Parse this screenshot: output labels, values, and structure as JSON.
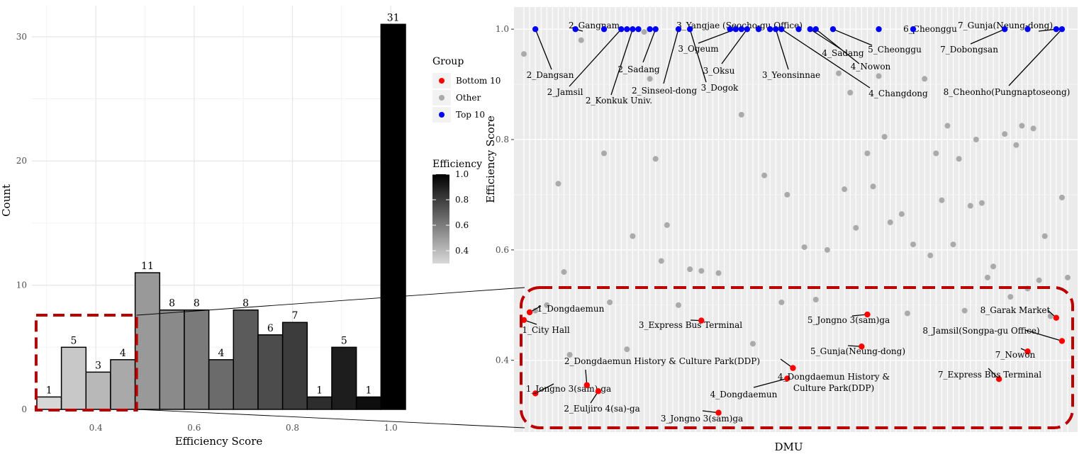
{
  "chart_data": [
    {
      "type": "bar",
      "title": "",
      "xlabel": "Efficiency Score",
      "ylabel": "Count",
      "xlim": [
        0.27,
        1.03
      ],
      "ylim": [
        0,
        32.5
      ],
      "x_ticks": [
        "0.4",
        "0.6",
        "0.8",
        "1.0"
      ],
      "x_tick_values": [
        0.4,
        0.6,
        0.8,
        1.0
      ],
      "y_ticks": [
        "0",
        "10",
        "20",
        "30"
      ],
      "y_tick_values": [
        0,
        10,
        20,
        30
      ],
      "grid": true,
      "bins": [
        {
          "x_min": 0.28,
          "x_max": 0.33,
          "count": 1
        },
        {
          "x_min": 0.33,
          "x_max": 0.38,
          "count": 5
        },
        {
          "x_min": 0.38,
          "x_max": 0.43,
          "count": 3
        },
        {
          "x_min": 0.43,
          "x_max": 0.48,
          "count": 4
        },
        {
          "x_min": 0.48,
          "x_max": 0.53,
          "count": 11
        },
        {
          "x_min": 0.53,
          "x_max": 0.58,
          "count": 8
        },
        {
          "x_min": 0.58,
          "x_max": 0.63,
          "count": 8
        },
        {
          "x_min": 0.63,
          "x_max": 0.68,
          "count": 4
        },
        {
          "x_min": 0.68,
          "x_max": 0.73,
          "count": 8
        },
        {
          "x_min": 0.73,
          "x_max": 0.78,
          "count": 6
        },
        {
          "x_min": 0.78,
          "x_max": 0.83,
          "count": 7
        },
        {
          "x_min": 0.83,
          "x_max": 0.88,
          "count": 1
        },
        {
          "x_min": 0.88,
          "x_max": 0.93,
          "count": 5
        },
        {
          "x_min": 0.93,
          "x_max": 0.98,
          "count": 1
        },
        {
          "x_min": 0.98,
          "x_max": 1.03,
          "count": 31
        }
      ],
      "fill_legend": {
        "title": "Efficiency",
        "labels": [
          "1.0",
          "0.8",
          "0.6",
          "0.4"
        ],
        "values": [
          1.0,
          0.8,
          0.6,
          0.4
        ],
        "range": [
          0.3,
          1.0
        ],
        "color_low": "#d9d9d9",
        "color_high": "#000000"
      },
      "highlight_box_range": [
        0.28,
        0.48
      ]
    },
    {
      "type": "scatter",
      "title": "",
      "xlabel": "DMU",
      "ylabel": "Efficiency Score",
      "ylim": [
        0.27,
        1.04
      ],
      "y_ticks": [
        "0.4",
        "0.6",
        "0.8",
        "1.0"
      ],
      "y_tick_values": [
        0.4,
        0.6,
        0.8,
        1.0
      ],
      "x_count": 96,
      "legend": {
        "title": "Group",
        "position": "right",
        "items": [
          "Bottom 10",
          "Other",
          "Top 10"
        ]
      },
      "group_colors": {
        "Bottom 10": "#ff0000",
        "Other": "#aaaaaa",
        "Top 10": "#0000ff"
      },
      "top_points": [
        {
          "x": 2,
          "y": 1.0
        },
        {
          "x": 9,
          "y": 1.0
        },
        {
          "x": 14,
          "y": 1.0
        },
        {
          "x": 17,
          "y": 1.0
        },
        {
          "x": 18,
          "y": 1.0
        },
        {
          "x": 19,
          "y": 1.0
        },
        {
          "x": 20,
          "y": 1.0
        },
        {
          "x": 22,
          "y": 1.0
        },
        {
          "x": 23,
          "y": 1.0
        },
        {
          "x": 27,
          "y": 1.0
        },
        {
          "x": 29,
          "y": 1.0
        },
        {
          "x": 36,
          "y": 1.0
        },
        {
          "x": 37,
          "y": 1.0
        },
        {
          "x": 38,
          "y": 1.0
        },
        {
          "x": 39,
          "y": 1.0
        },
        {
          "x": 41,
          "y": 1.0
        },
        {
          "x": 43,
          "y": 1.0
        },
        {
          "x": 44,
          "y": 1.0
        },
        {
          "x": 45,
          "y": 1.0
        },
        {
          "x": 48,
          "y": 1.0
        },
        {
          "x": 50,
          "y": 1.0
        },
        {
          "x": 51,
          "y": 1.0
        },
        {
          "x": 54,
          "y": 1.0
        },
        {
          "x": 62,
          "y": 1.0
        },
        {
          "x": 68,
          "y": 1.0
        },
        {
          "x": 84,
          "y": 1.0
        },
        {
          "x": 88,
          "y": 1.0
        },
        {
          "x": 93,
          "y": 1.0
        },
        {
          "x": 94,
          "y": 1.0
        }
      ],
      "other_points": [
        {
          "x": 0,
          "y": 0.955
        },
        {
          "x": 2,
          "y": 0.49
        },
        {
          "x": 4,
          "y": 0.5
        },
        {
          "x": 6,
          "y": 0.72
        },
        {
          "x": 7,
          "y": 0.56
        },
        {
          "x": 8,
          "y": 0.41
        },
        {
          "x": 10,
          "y": 0.98
        },
        {
          "x": 14,
          "y": 0.775
        },
        {
          "x": 15,
          "y": 0.505
        },
        {
          "x": 18,
          "y": 0.42
        },
        {
          "x": 19,
          "y": 0.625
        },
        {
          "x": 21,
          "y": 0.995
        },
        {
          "x": 22,
          "y": 0.91
        },
        {
          "x": 23,
          "y": 0.765
        },
        {
          "x": 24,
          "y": 0.58
        },
        {
          "x": 25,
          "y": 0.645
        },
        {
          "x": 27,
          "y": 0.5
        },
        {
          "x": 29,
          "y": 0.565
        },
        {
          "x": 31,
          "y": 0.562
        },
        {
          "x": 34,
          "y": 0.558
        },
        {
          "x": 38,
          "y": 0.845
        },
        {
          "x": 40,
          "y": 0.43
        },
        {
          "x": 42,
          "y": 0.735
        },
        {
          "x": 45,
          "y": 0.505
        },
        {
          "x": 46,
          "y": 0.7
        },
        {
          "x": 49,
          "y": 0.605
        },
        {
          "x": 51,
          "y": 0.51
        },
        {
          "x": 53,
          "y": 0.6
        },
        {
          "x": 55,
          "y": 0.92
        },
        {
          "x": 56,
          "y": 0.71
        },
        {
          "x": 57,
          "y": 0.885
        },
        {
          "x": 58,
          "y": 0.64
        },
        {
          "x": 60,
          "y": 0.775
        },
        {
          "x": 61,
          "y": 0.715
        },
        {
          "x": 62,
          "y": 0.915
        },
        {
          "x": 63,
          "y": 0.805
        },
        {
          "x": 64,
          "y": 0.65
        },
        {
          "x": 66,
          "y": 0.665
        },
        {
          "x": 67,
          "y": 0.485
        },
        {
          "x": 68,
          "y": 0.61
        },
        {
          "x": 70,
          "y": 0.91
        },
        {
          "x": 71,
          "y": 0.59
        },
        {
          "x": 72,
          "y": 0.775
        },
        {
          "x": 73,
          "y": 0.69
        },
        {
          "x": 74,
          "y": 0.825
        },
        {
          "x": 75,
          "y": 0.61
        },
        {
          "x": 76,
          "y": 0.765
        },
        {
          "x": 77,
          "y": 0.49
        },
        {
          "x": 78,
          "y": 0.68
        },
        {
          "x": 79,
          "y": 0.8
        },
        {
          "x": 80,
          "y": 0.685
        },
        {
          "x": 81,
          "y": 0.55
        },
        {
          "x": 82,
          "y": 0.57
        },
        {
          "x": 84,
          "y": 0.81
        },
        {
          "x": 85,
          "y": 0.515
        },
        {
          "x": 86,
          "y": 0.79
        },
        {
          "x": 87,
          "y": 0.825
        },
        {
          "x": 88,
          "y": 0.53
        },
        {
          "x": 89,
          "y": 0.82
        },
        {
          "x": 90,
          "y": 0.545
        },
        {
          "x": 91,
          "y": 0.625
        },
        {
          "x": 92,
          "y": 0.48
        },
        {
          "x": 94,
          "y": 0.695
        },
        {
          "x": 95,
          "y": 0.55
        }
      ],
      "bottom_points": [
        {
          "x": 0,
          "y": 0.473,
          "label": "1_City Hall"
        },
        {
          "x": 1,
          "y": 0.487,
          "label": "1_Dongdaemun"
        },
        {
          "x": 2,
          "y": 0.34,
          "label": "1_Jongno 3(sam)-ga"
        },
        {
          "x": 11,
          "y": 0.355,
          "label": "2_Dongdaemun History & Culture Park(DDP)"
        },
        {
          "x": 13,
          "y": 0.344,
          "label": "2_Euljiro 4(sa)-ga"
        },
        {
          "x": 31,
          "y": 0.472,
          "label": "3_Express Bus Terminal"
        },
        {
          "x": 34,
          "y": 0.305,
          "label": "3_Jongno 3(sam)ga"
        },
        {
          "x": 46,
          "y": 0.367,
          "label": "4_Dongdaemun"
        },
        {
          "x": 47,
          "y": 0.386,
          "label": "4_Dongdaemun History & Culture Park(DDP)"
        },
        {
          "x": 59,
          "y": 0.425,
          "label": "5_Gunja(Neung-dong)"
        },
        {
          "x": 60,
          "y": 0.483,
          "label": "5_Jongno 3(sam)ga"
        },
        {
          "x": 83,
          "y": 0.366,
          "label": "7_Express Bus Terminal"
        },
        {
          "x": 88,
          "y": 0.416,
          "label": "7_Nowon"
        },
        {
          "x": 93,
          "y": 0.477,
          "label": "8_Garak Market"
        },
        {
          "x": 94,
          "y": 0.435,
          "label": "8_Jamsil(Songpa-gu Office)"
        }
      ],
      "top_labels": [
        "2_Gangnam",
        "2_Dangsan",
        "2_Jamsil",
        "2_Konkuk Univ.",
        "2_Sadang",
        "2_Sinseol-dong",
        "3_Yangjae (Seocho-gu Office)",
        "3_Ogeum",
        "3_Oksu",
        "3_Dogok",
        "3_Yeonsinnae",
        "4_Sadang",
        "4_Nowon",
        "4_Changdong",
        "5_Cheonggu",
        "6_Cheonggu",
        "7_Gunja(Neung-dong)",
        "7_Dobongsan",
        "8_Cheonho(Pungnaptoseong)"
      ]
    }
  ]
}
